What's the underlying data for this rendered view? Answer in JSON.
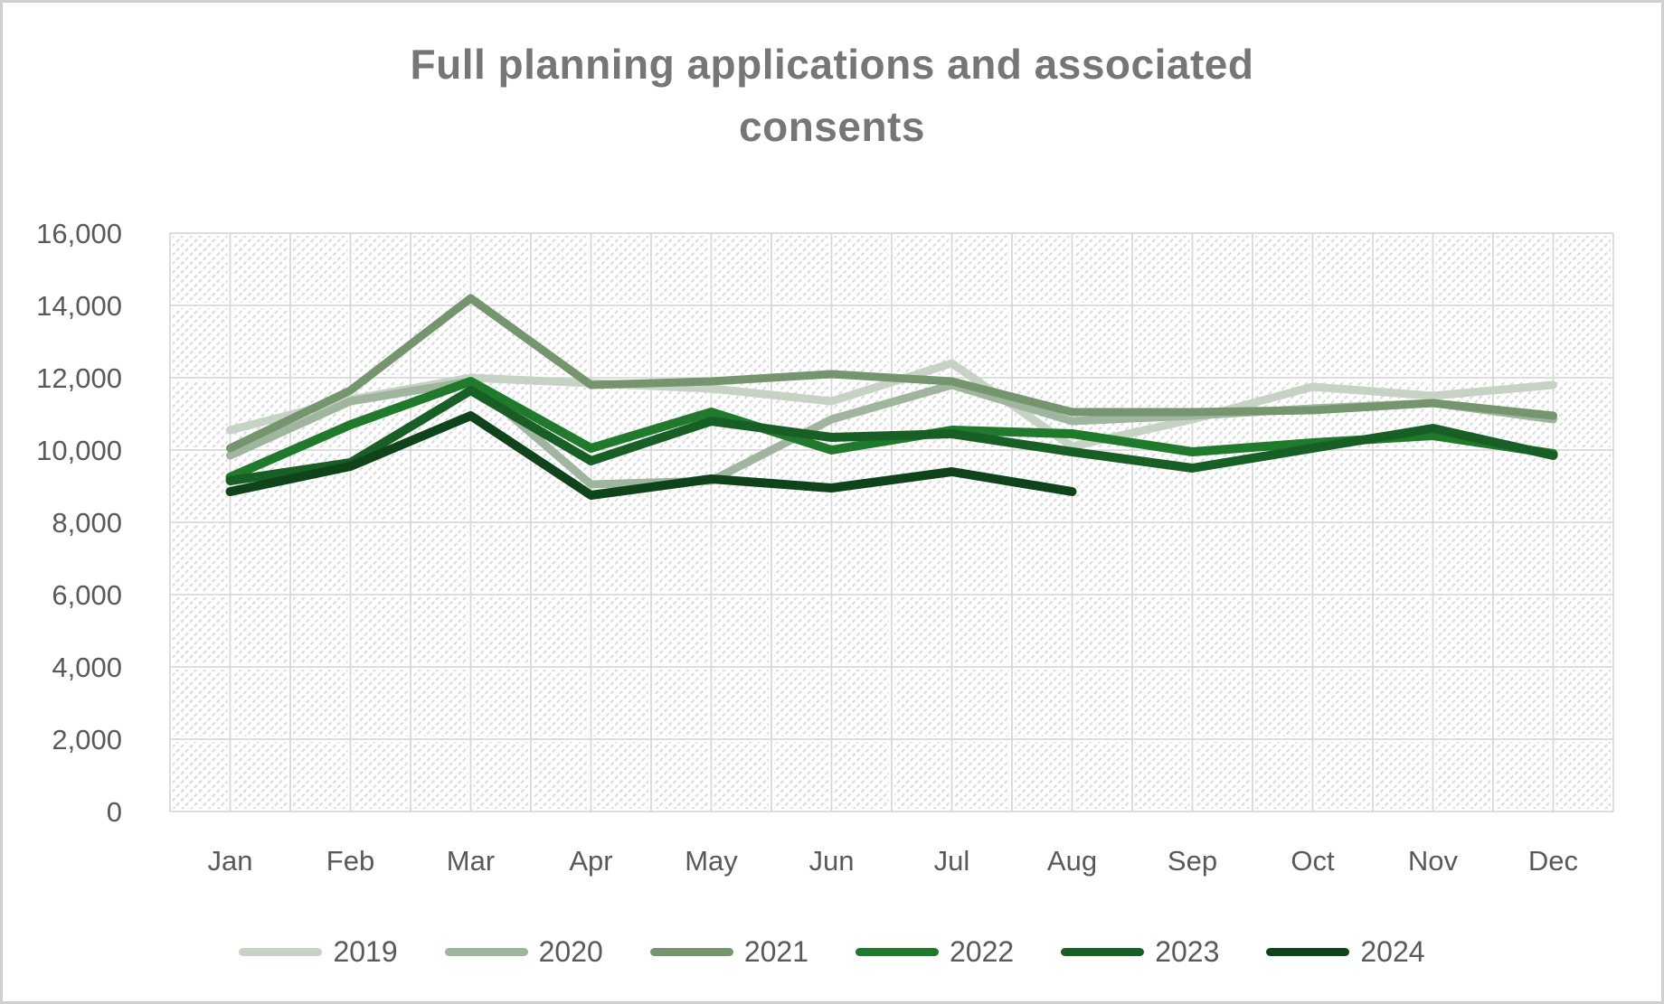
{
  "window": {
    "background": "#ffffff",
    "border_color": "#cfcfcf"
  },
  "title": {
    "text": "Full planning applications and associated consents",
    "color": "#767676"
  },
  "axes": {
    "tick_color": "#595959",
    "gridline_color": "#d8d8d8",
    "y_tick_labels": [
      "16,000",
      "14,000",
      "12,000",
      "10,000",
      "8,000",
      "6,000",
      "4,000",
      "2,000",
      "0"
    ],
    "x_tick_labels": [
      "Jan",
      "Feb",
      "Mar",
      "Apr",
      "May",
      "Jun",
      "Jul",
      "Aug",
      "Sep",
      "Oct",
      "Nov",
      "Dec"
    ]
  },
  "chart_data": {
    "type": "line",
    "title": "Full planning applications and associated consents",
    "categories": [
      "Jan",
      "Feb",
      "Mar",
      "Apr",
      "May",
      "Jun",
      "Jul",
      "Aug",
      "Sep",
      "Oct",
      "Nov",
      "Dec"
    ],
    "ylim": [
      0,
      16000
    ],
    "ytick_step": 2000,
    "grid": true,
    "legend_position": "bottom",
    "plot_area_fill": "diagonal-hatch",
    "series": [
      {
        "name": "2019",
        "color": "#c6d2c4",
        "values": [
          10550,
          11400,
          12000,
          11850,
          11700,
          11350,
          12400,
          10100,
          10850,
          11750,
          11500,
          11800
        ]
      },
      {
        "name": "2020",
        "color": "#a0b59d",
        "values": [
          9850,
          11350,
          11900,
          9050,
          9150,
          10850,
          11800,
          10800,
          10950,
          11150,
          11300,
          10850
        ]
      },
      {
        "name": "2021",
        "color": "#74956d",
        "values": [
          10050,
          11650,
          14200,
          11800,
          11900,
          12100,
          11900,
          11050,
          11050,
          11100,
          11300,
          10950
        ]
      },
      {
        "name": "2022",
        "color": "#1f7a2b",
        "values": [
          9250,
          10700,
          11900,
          10050,
          11050,
          10000,
          10550,
          10450,
          9950,
          10200,
          10400,
          9900
        ]
      },
      {
        "name": "2023",
        "color": "#175f24",
        "values": [
          9150,
          9650,
          11650,
          9700,
          10800,
          10350,
          10450,
          9950,
          9500,
          10050,
          10600,
          9850
        ]
      },
      {
        "name": "2024",
        "color": "#0f431a",
        "values": [
          8850,
          9550,
          10950,
          8750,
          9200,
          8950,
          9400,
          8850
        ]
      }
    ]
  }
}
